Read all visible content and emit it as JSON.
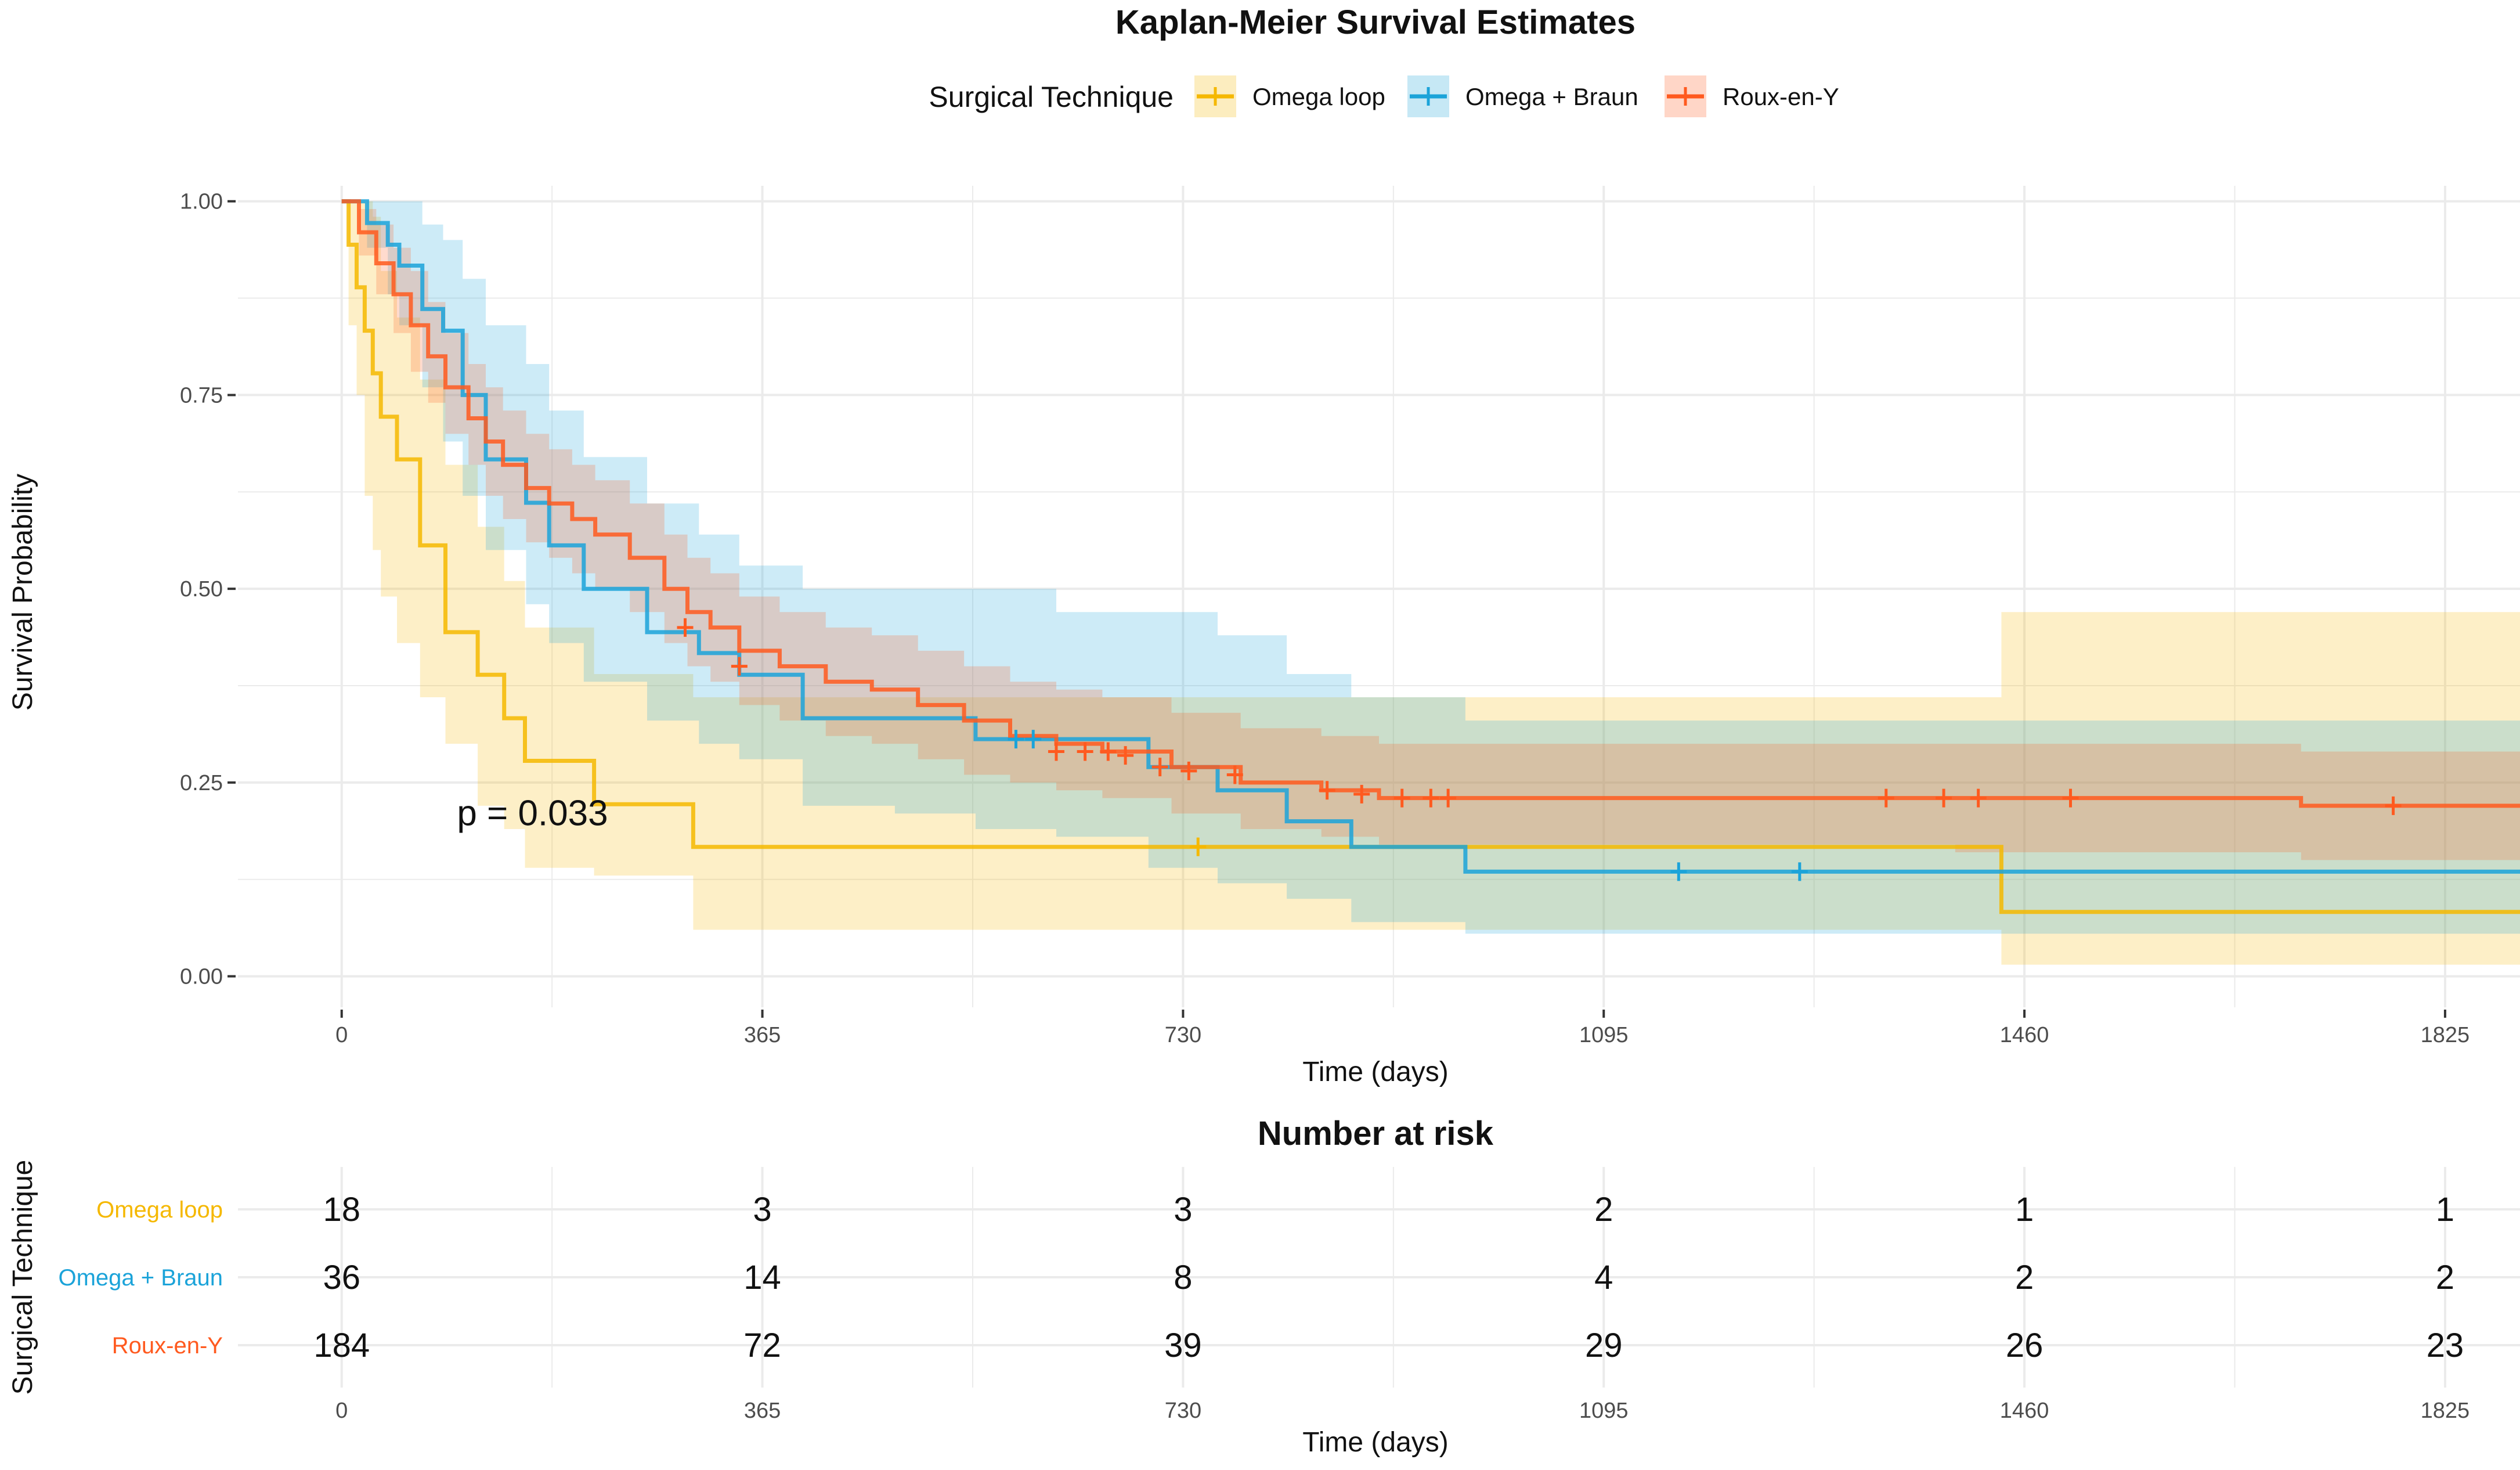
{
  "colors": {
    "omega_loop": "#F5B800",
    "omega_braun": "#1BA3D9",
    "roux_en_y": "#FF5A1F",
    "grid": "#EBEBEB",
    "background": "#FFFFFF"
  },
  "chart_data": [
    {
      "type": "line",
      "subtype": "kaplan-meier step curves with confidence bands",
      "title": "Kaplan-Meier Survival Estimates",
      "xlabel": "Time (days)",
      "ylabel": "Survival Probability",
      "xlim": [
        -90,
        1890
      ],
      "ylim": [
        -0.04,
        1.02
      ],
      "x_ticks": [
        0,
        365,
        730,
        1095,
        1460,
        1825
      ],
      "x_tick_labels": [
        "0",
        "365",
        "730",
        "1095",
        "1460",
        "1825"
      ],
      "y_ticks": [
        0,
        0.25,
        0.5,
        0.75,
        1
      ],
      "y_tick_labels": [
        "0.00",
        "0.25",
        "0.50",
        "0.75",
        "1.00"
      ],
      "grid": true,
      "legend": {
        "title": "Surgical Technique",
        "position": "top",
        "entries": [
          "Omega loop",
          "Omega + Braun",
          "Roux-en-Y"
        ]
      },
      "annotation": "p = 0.033",
      "annotation_at": [
        100,
        0.195
      ],
      "series": [
        {
          "name": "Omega loop",
          "color_key": "omega_loop",
          "x": [
            0,
            6,
            13,
            20,
            27,
            34,
            48,
            68,
            90,
            118,
            141,
            159,
            219,
            305,
            1440,
            1890
          ],
          "y": [
            1,
            0.944,
            0.889,
            0.833,
            0.778,
            0.722,
            0.667,
            0.556,
            0.444,
            0.389,
            0.333,
            0.278,
            0.222,
            0.167,
            0.083,
            0.083
          ],
          "lower": [
            1,
            0.84,
            0.75,
            0.62,
            0.55,
            0.49,
            0.43,
            0.36,
            0.3,
            0.22,
            0.19,
            0.14,
            0.13,
            0.06,
            0.015,
            0.015
          ],
          "upper": [
            1,
            1,
            1,
            1,
            0.98,
            0.91,
            0.85,
            0.77,
            0.66,
            0.58,
            0.51,
            0.45,
            0.39,
            0.36,
            0.47,
            0.47
          ],
          "censor_x": [
            743
          ],
          "censor_y": [
            0.167
          ]
        },
        {
          "name": "Omega + Braun",
          "color_key": "omega_braun",
          "x": [
            0,
            22,
            40,
            50,
            70,
            88,
            105,
            125,
            160,
            180,
            210,
            265,
            310,
            345,
            400,
            480,
            550,
            620,
            700,
            760,
            820,
            876,
            975,
            1890
          ],
          "y": [
            1,
            0.972,
            0.944,
            0.917,
            0.861,
            0.833,
            0.75,
            0.667,
            0.611,
            0.556,
            0.5,
            0.444,
            0.417,
            0.389,
            0.333,
            0.333,
            0.306,
            0.306,
            0.27,
            0.24,
            0.2,
            0.167,
            0.135,
            0.135
          ],
          "lower": [
            1,
            0.94,
            0.88,
            0.84,
            0.76,
            0.69,
            0.62,
            0.55,
            0.48,
            0.43,
            0.38,
            0.33,
            0.3,
            0.28,
            0.22,
            0.21,
            0.19,
            0.18,
            0.14,
            0.12,
            0.1,
            0.07,
            0.055,
            0.055
          ],
          "upper": [
            1,
            1,
            1,
            1,
            0.97,
            0.95,
            0.9,
            0.84,
            0.79,
            0.73,
            0.67,
            0.61,
            0.57,
            0.53,
            0.5,
            0.5,
            0.5,
            0.47,
            0.47,
            0.44,
            0.39,
            0.36,
            0.33,
            0.33
          ],
          "censor_x": [
            585,
            600,
            1160,
            1265
          ],
          "censor_y": [
            0.306,
            0.306,
            0.135,
            0.135
          ]
        },
        {
          "name": "Roux-en-Y",
          "color_key": "roux_en_y",
          "x": [
            0,
            15,
            30,
            45,
            60,
            75,
            90,
            110,
            125,
            140,
            160,
            180,
            200,
            220,
            250,
            280,
            300,
            320,
            345,
            380,
            420,
            460,
            500,
            540,
            580,
            620,
            660,
            720,
            780,
            850,
            900,
            1000,
            1200,
            1400,
            1500,
            1700,
            1890
          ],
          "y": [
            1,
            0.96,
            0.92,
            0.88,
            0.84,
            0.8,
            0.76,
            0.72,
            0.69,
            0.66,
            0.63,
            0.61,
            0.59,
            0.57,
            0.54,
            0.5,
            0.47,
            0.45,
            0.42,
            0.4,
            0.38,
            0.37,
            0.35,
            0.33,
            0.31,
            0.3,
            0.29,
            0.27,
            0.25,
            0.24,
            0.23,
            0.23,
            0.23,
            0.23,
            0.23,
            0.22,
            0.22
          ],
          "lower": [
            1,
            0.93,
            0.88,
            0.83,
            0.78,
            0.74,
            0.7,
            0.66,
            0.62,
            0.59,
            0.56,
            0.54,
            0.52,
            0.5,
            0.47,
            0.43,
            0.4,
            0.38,
            0.35,
            0.33,
            0.31,
            0.3,
            0.28,
            0.26,
            0.25,
            0.24,
            0.23,
            0.21,
            0.19,
            0.18,
            0.17,
            0.17,
            0.17,
            0.16,
            0.16,
            0.15,
            0.15
          ],
          "upper": [
            1,
            0.99,
            0.97,
            0.94,
            0.91,
            0.87,
            0.83,
            0.79,
            0.76,
            0.73,
            0.7,
            0.68,
            0.66,
            0.64,
            0.61,
            0.57,
            0.54,
            0.52,
            0.49,
            0.47,
            0.45,
            0.44,
            0.42,
            0.4,
            0.38,
            0.37,
            0.36,
            0.34,
            0.32,
            0.31,
            0.3,
            0.3,
            0.3,
            0.3,
            0.3,
            0.29,
            0.29
          ],
          "censor_x": [
            298,
            345,
            620,
            645,
            665,
            680,
            710,
            735,
            775,
            855,
            885,
            920,
            945,
            960,
            1340,
            1390,
            1420,
            1500,
            1780
          ],
          "censor_y": [
            0.45,
            0.4,
            0.29,
            0.29,
            0.29,
            0.285,
            0.27,
            0.265,
            0.26,
            0.24,
            0.235,
            0.23,
            0.23,
            0.23,
            0.23,
            0.23,
            0.23,
            0.23,
            0.22
          ]
        }
      ]
    },
    {
      "type": "table",
      "title": "Number at risk",
      "xlabel": "Time (days)",
      "ylabel": "Surgical Technique",
      "x_ticks": [
        0,
        365,
        730,
        1095,
        1460,
        1825
      ],
      "x_tick_labels": [
        "0",
        "365",
        "730",
        "1095",
        "1460",
        "1825"
      ],
      "rows": [
        {
          "name": "Omega loop",
          "color_key": "omega_loop",
          "values": [
            18,
            3,
            3,
            2,
            1,
            1
          ]
        },
        {
          "name": "Omega + Braun",
          "color_key": "omega_braun",
          "values": [
            36,
            14,
            8,
            4,
            2,
            2
          ]
        },
        {
          "name": "Roux-en-Y",
          "color_key": "roux_en_y",
          "values": [
            184,
            72,
            39,
            29,
            26,
            23
          ]
        }
      ]
    }
  ]
}
